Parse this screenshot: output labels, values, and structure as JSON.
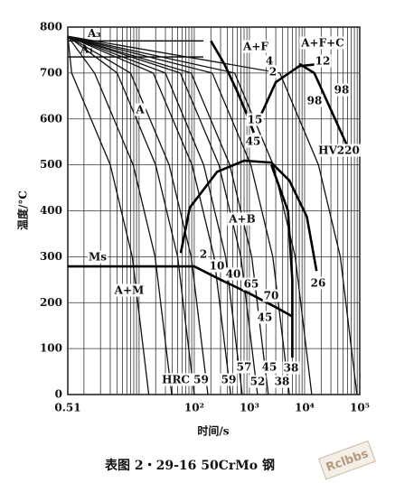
{
  "chart_data": {
    "type": "line",
    "xscale": "log",
    "xlim": [
      0.51,
      100000
    ],
    "ylim": [
      0,
      800
    ],
    "xticks": [
      {
        "value": 0.51,
        "label": "0.51"
      },
      {
        "value": 100,
        "label": "10²"
      },
      {
        "value": 1000,
        "label": "10³"
      },
      {
        "value": 10000,
        "label": "10⁴"
      },
      {
        "value": 100000,
        "label": "10⁵"
      }
    ],
    "xminorticks": [
      1,
      2,
      3,
      4,
      5,
      6,
      7,
      8,
      9,
      10,
      20,
      30,
      40,
      50,
      60,
      70,
      80,
      90,
      200,
      300,
      400,
      500,
      600,
      700,
      800,
      900,
      2000,
      3000,
      4000,
      5000,
      6000,
      7000,
      8000,
      9000,
      20000,
      30000,
      40000,
      50000,
      60000,
      70000,
      80000,
      90000
    ],
    "yticks": [
      0,
      100,
      200,
      300,
      400,
      500,
      600,
      700,
      800
    ],
    "grid": true,
    "ylabel": "温度/°C",
    "xlabel": "时间/s",
    "caption": "表图 2・29-16   50CrMo 钢",
    "watermark": "Rclbbs",
    "critical_lines": [
      {
        "name": "A₃",
        "value": 770
      },
      {
        "name": "A₁",
        "value": 735
      }
    ],
    "cooling_curves": [
      {
        "x": [
          0.51,
          0.6,
          3,
          7.5,
          15
        ],
        "y": [
          780,
          700,
          500,
          300,
          0
        ]
      },
      {
        "x": [
          0.51,
          1.56,
          7.8,
          19.5,
          39
        ],
        "y": [
          780,
          700,
          500,
          300,
          0
        ]
      },
      {
        "x": [
          0.51,
          4,
          20,
          50,
          100
        ],
        "y": [
          780,
          700,
          500,
          300,
          0
        ]
      },
      {
        "x": [
          0.51,
          7,
          35,
          88,
          177
        ],
        "y": [
          780,
          700,
          500,
          300,
          0
        ]
      },
      {
        "x": [
          0.51,
          18,
          91,
          228,
          457
        ],
        "y": [
          780,
          700,
          500,
          300,
          0
        ]
      },
      {
        "x": [
          0.51,
          30,
          148,
          370,
          740
        ],
        "y": [
          780,
          700,
          500,
          300,
          0
        ]
      },
      {
        "x": [
          0.51,
          56,
          280,
          700,
          1400
        ],
        "y": [
          780,
          700,
          500,
          300,
          0
        ]
      },
      {
        "x": [
          0.51,
          88,
          440,
          1100,
          2200
        ],
        "y": [
          780,
          700,
          500,
          300,
          0
        ]
      },
      {
        "x": [
          0.51,
          212,
          1060,
          2650,
          5300
        ],
        "y": [
          780,
          700,
          500,
          300,
          0
        ]
      },
      {
        "x": [
          0.51,
          540,
          2700,
          6750,
          13500
        ],
        "y": [
          780,
          700,
          500,
          300,
          0
        ]
      },
      {
        "x": [
          0.51,
          3560,
          17800,
          44500,
          89000
        ],
        "y": [
          780,
          700,
          500,
          300,
          0
        ]
      }
    ],
    "transformation_lines": [
      {
        "x": [
          200,
          350,
          600,
          900,
          1200
        ],
        "y": [
          770,
          720,
          660,
          610,
          570
        ]
      },
      {
        "x": [
          1500,
          3000,
          8000,
          20000
        ],
        "y": [
          600,
          680,
          715,
          720
        ]
      },
      {
        "x": [
          8000,
          15000,
          30000,
          60000
        ],
        "y": [
          720,
          700,
          620,
          540
        ]
      },
      {
        "x": [
          57,
          83,
          260,
          800,
          2500,
          5300,
          11000,
          16500
        ],
        "y": [
          308,
          407,
          485,
          509,
          505,
          466,
          387,
          269
        ]
      },
      {
        "x": [
          0.51,
          100,
          300,
          1000,
          3000,
          6000
        ],
        "y": [
          279,
          279,
          250,
          220,
          190,
          170
        ]
      },
      {
        "x": [
          2500,
          5000,
          6000,
          6000
        ],
        "y": [
          500,
          400,
          250,
          80
        ]
      }
    ],
    "annotations": [
      "A+F",
      "A+F+C",
      "A",
      "A+B",
      "Ms",
      "A+M",
      "HV220",
      "4",
      "2",
      "12",
      "98",
      "98",
      "15",
      "45",
      "2",
      "10",
      "40",
      "65",
      "70",
      "26",
      "45",
      "HRC 59",
      "59",
      "57",
      "52",
      "45",
      "38",
      "38"
    ]
  }
}
